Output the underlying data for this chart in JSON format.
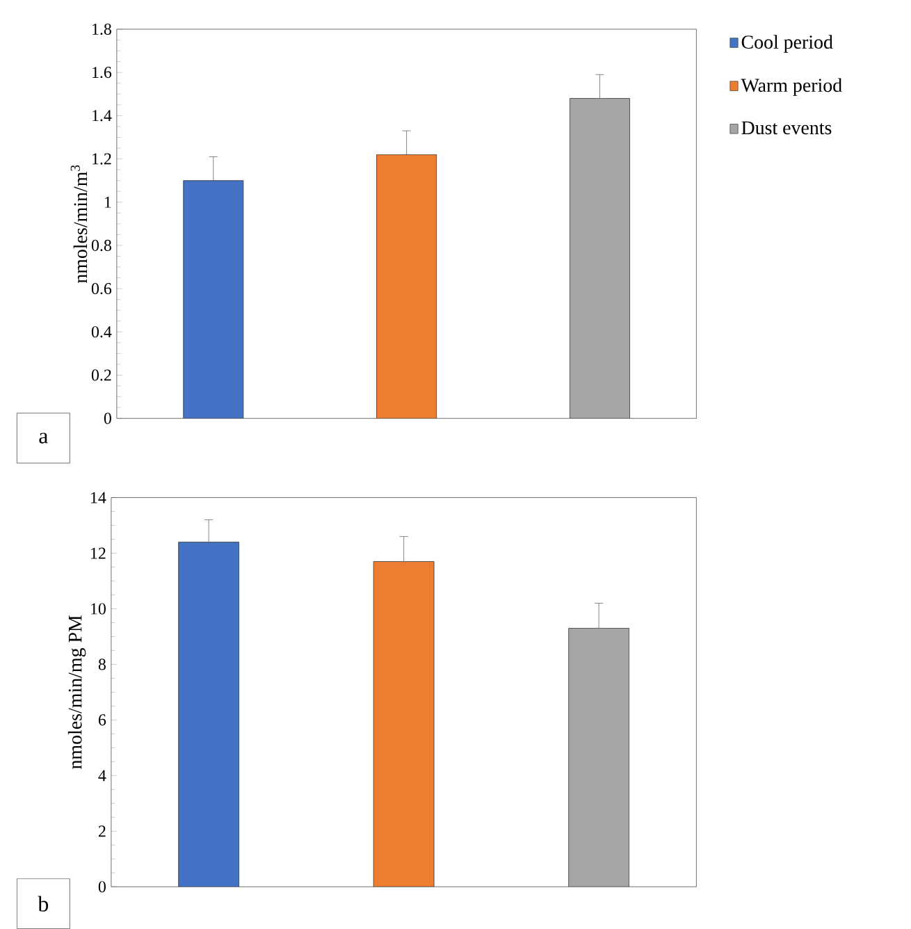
{
  "chart_data": [
    {
      "type": "bar",
      "ylabel": "nmoles/min/m$^{3}$",
      "categories": [
        null,
        null,
        null
      ],
      "stacked": true,
      "series": [
        {
          "name": "Cool period",
          "color": "#4472c4",
          "values": [
            1.1,
            null,
            null
          ],
          "errors": [
            [
              1.1,
              1.21
            ],
            null,
            null
          ]
        },
        {
          "name": "Warm period",
          "color": "#ed7d31",
          "values": [
            null,
            1.22,
            null
          ],
          "errors": [
            null,
            [
              1.22,
              1.33
            ],
            null
          ]
        },
        {
          "name": "Dust events",
          "color": "#a5a5a5",
          "values": [
            null,
            null,
            1.48
          ],
          "errors": [
            null,
            null,
            [
              1.48,
              1.59
            ]
          ]
        }
      ],
      "ylim": [
        0,
        1.8
      ],
      "yticks": [
        0,
        0.2,
        0.4,
        0.6,
        0.8,
        1,
        1.2,
        1.4,
        1.6,
        1.8
      ],
      "legend": "right",
      "annotations": [
        "a"
      ]
    },
    {
      "type": "bar",
      "ylabel": "nmoles/min/mg PM",
      "categories": [
        null,
        null,
        null
      ],
      "values": [
        12.4,
        11.7,
        9.3
      ],
      "colors": [
        "#4472c4",
        "#ed7d31",
        "#a5a5a5"
      ],
      "errors": [
        [
          12.4,
          13.2
        ],
        [
          11.7,
          12.6
        ],
        [
          9.3,
          10.2
        ]
      ],
      "ylim": [
        0,
        14
      ],
      "yticks": [
        0,
        2,
        4,
        6,
        8,
        10,
        12,
        14
      ],
      "annotations": [
        "b"
      ]
    }
  ]
}
